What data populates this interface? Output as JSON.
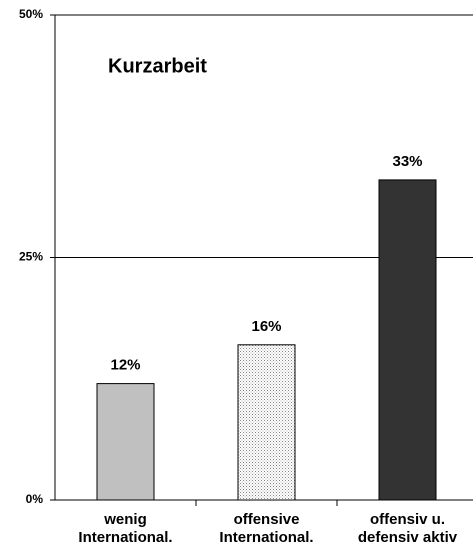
{
  "chart_data": {
    "type": "bar",
    "title": "Kurzarbeit",
    "categories": [
      "wenig\nInternational.",
      "offensive\nInternational.",
      "offensiv u.\ndefensiv aktiv"
    ],
    "values": [
      12,
      16,
      33
    ],
    "value_labels": [
      "12%",
      "16%",
      "33%"
    ],
    "colors": [
      "#c0c0c0",
      "#e2e2e2",
      "#333333"
    ],
    "ylim": [
      0,
      50
    ],
    "yticks": [
      {
        "value": 0,
        "label": "0%"
      },
      {
        "value": 25,
        "label": "25%"
      },
      {
        "value": 50,
        "label": "50%"
      }
    ],
    "grid": true
  }
}
